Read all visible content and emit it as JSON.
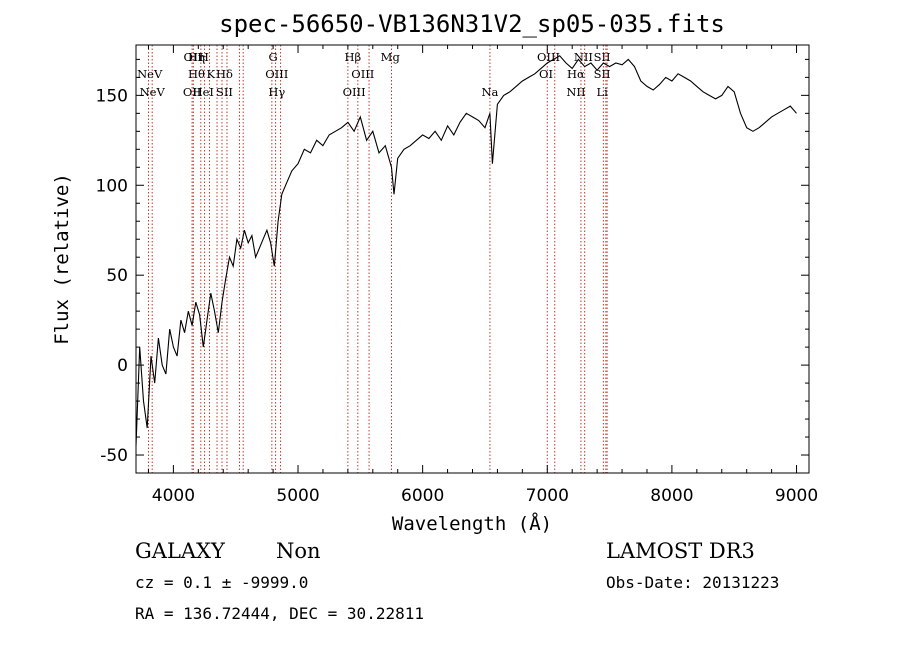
{
  "chart_data": {
    "type": "line",
    "title": "spec-56650-VB136N31V2_sp05-035.fits",
    "xlabel": "Wavelength (Å)",
    "ylabel": "Flux (relative)",
    "xlim": [
      3700,
      9100
    ],
    "ylim": [
      -60,
      178
    ],
    "xticks": [
      4000,
      5000,
      6000,
      7000,
      8000,
      9000
    ],
    "yticks": [
      -50,
      0,
      50,
      100,
      150
    ],
    "series": [
      {
        "color": "#000000",
        "x": [
          3700,
          3730,
          3760,
          3790,
          3820,
          3850,
          3880,
          3910,
          3940,
          3970,
          4000,
          4030,
          4060,
          4090,
          4120,
          4150,
          4180,
          4210,
          4240,
          4270,
          4300,
          4330,
          4360,
          4390,
          4420,
          4450,
          4480,
          4510,
          4540,
          4570,
          4600,
          4630,
          4660,
          4690,
          4720,
          4750,
          4780,
          4810,
          4840,
          4870,
          4900,
          4950,
          5000,
          5050,
          5100,
          5150,
          5200,
          5250,
          5300,
          5350,
          5400,
          5450,
          5500,
          5550,
          5600,
          5650,
          5700,
          5750,
          5770,
          5800,
          5850,
          5900,
          5950,
          6000,
          6050,
          6100,
          6150,
          6200,
          6250,
          6300,
          6350,
          6400,
          6450,
          6500,
          6540,
          6560,
          6600,
          6650,
          6700,
          6750,
          6800,
          6850,
          6900,
          6950,
          7000,
          7050,
          7100,
          7150,
          7200,
          7250,
          7300,
          7350,
          7400,
          7450,
          7500,
          7550,
          7600,
          7650,
          7700,
          7750,
          7800,
          7850,
          7900,
          7950,
          8000,
          8050,
          8100,
          8150,
          8200,
          8250,
          8300,
          8350,
          8400,
          8450,
          8500,
          8550,
          8600,
          8650,
          8700,
          8750,
          8800,
          8850,
          8900,
          8950,
          9000
        ],
        "y": [
          -45,
          10,
          -20,
          -35,
          5,
          -10,
          15,
          0,
          -5,
          20,
          10,
          5,
          25,
          18,
          30,
          22,
          35,
          28,
          10,
          25,
          40,
          30,
          18,
          35,
          48,
          60,
          55,
          70,
          65,
          75,
          68,
          72,
          60,
          65,
          70,
          75,
          68,
          55,
          80,
          95,
          100,
          108,
          112,
          120,
          118,
          125,
          122,
          128,
          130,
          132,
          135,
          130,
          138,
          125,
          130,
          118,
          122,
          110,
          95,
          115,
          120,
          122,
          125,
          128,
          126,
          130,
          125,
          133,
          128,
          135,
          140,
          138,
          136,
          132,
          140,
          112,
          145,
          150,
          152,
          155,
          158,
          160,
          162,
          165,
          168,
          170,
          172,
          168,
          165,
          170,
          166,
          168,
          164,
          168,
          166,
          168,
          167,
          170,
          166,
          158,
          155,
          153,
          156,
          160,
          158,
          162,
          160,
          158,
          155,
          152,
          150,
          148,
          150,
          155,
          152,
          140,
          132,
          130,
          132,
          135,
          138,
          140,
          142,
          144,
          140
        ]
      }
    ],
    "line_markers": [
      {
        "label": "NeV",
        "x": 3810,
        "row": 1
      },
      {
        "label": "NeV",
        "x": 3830,
        "row": 2
      },
      {
        "label": "OII",
        "x": 4155,
        "row": 0
      },
      {
        "label": "Hη",
        "x": 4185,
        "row": 0
      },
      {
        "label": "H",
        "x": 4245,
        "row": 0
      },
      {
        "label": "Hθ",
        "x": 4185,
        "row": 1
      },
      {
        "label": "K",
        "x": 4300,
        "row": 1
      },
      {
        "label": "Hδ",
        "x": 4410,
        "row": 1
      },
      {
        "label": "OII",
        "x": 4150,
        "row": 2
      },
      {
        "label": "HeI",
        "x": 4240,
        "row": 2
      },
      {
        "label": "SII",
        "x": 4410,
        "row": 2
      },
      {
        "label": "G",
        "x": 4800,
        "row": 0
      },
      {
        "label": "OIII",
        "x": 4830,
        "row": 1
      },
      {
        "label": "Hγ",
        "x": 4830,
        "row": 2
      },
      {
        "label": "Hβ",
        "x": 5440,
        "row": 0
      },
      {
        "label": "Mg",
        "x": 5740,
        "row": 0
      },
      {
        "label": "OIII",
        "x": 5520,
        "row": 1
      },
      {
        "label": "OIII",
        "x": 5450,
        "row": 2
      },
      {
        "label": "Na",
        "x": 6540,
        "row": 2
      },
      {
        "label": "OIII",
        "x": 7010,
        "row": 0
      },
      {
        "label": "NII",
        "x": 7290,
        "row": 0
      },
      {
        "label": "SII",
        "x": 7440,
        "row": 0
      },
      {
        "label": "OI",
        "x": 6990,
        "row": 1
      },
      {
        "label": "Hα",
        "x": 7230,
        "row": 1
      },
      {
        "label": "SII",
        "x": 7440,
        "row": 1
      },
      {
        "label": "NII",
        "x": 7230,
        "row": 2
      },
      {
        "label": "Li",
        "x": 7440,
        "row": 2
      }
    ],
    "marker_lines_x": [
      3800,
      3830,
      4150,
      4160,
      4220,
      4250,
      4290,
      4350,
      4390,
      4430,
      4530,
      4560,
      4790,
      4820,
      4860,
      5400,
      5480,
      5570,
      5750,
      6540,
      7000,
      7060,
      7270,
      7300,
      7450,
      7470,
      7480
    ],
    "grid": false,
    "legend": "none"
  },
  "info": {
    "object_class": "GALAXY",
    "subclass": "Non",
    "survey": "LAMOST DR3",
    "redshift_line": "cz = 0.1 ± -9999.0",
    "obs_date_line": "Obs-Date: 20131223",
    "coords_line": "RA = 136.72444, DEC =  30.22811"
  },
  "colors": {
    "spectrum": "#000000",
    "marker_line": "#c0392b",
    "axes": "#000000"
  }
}
